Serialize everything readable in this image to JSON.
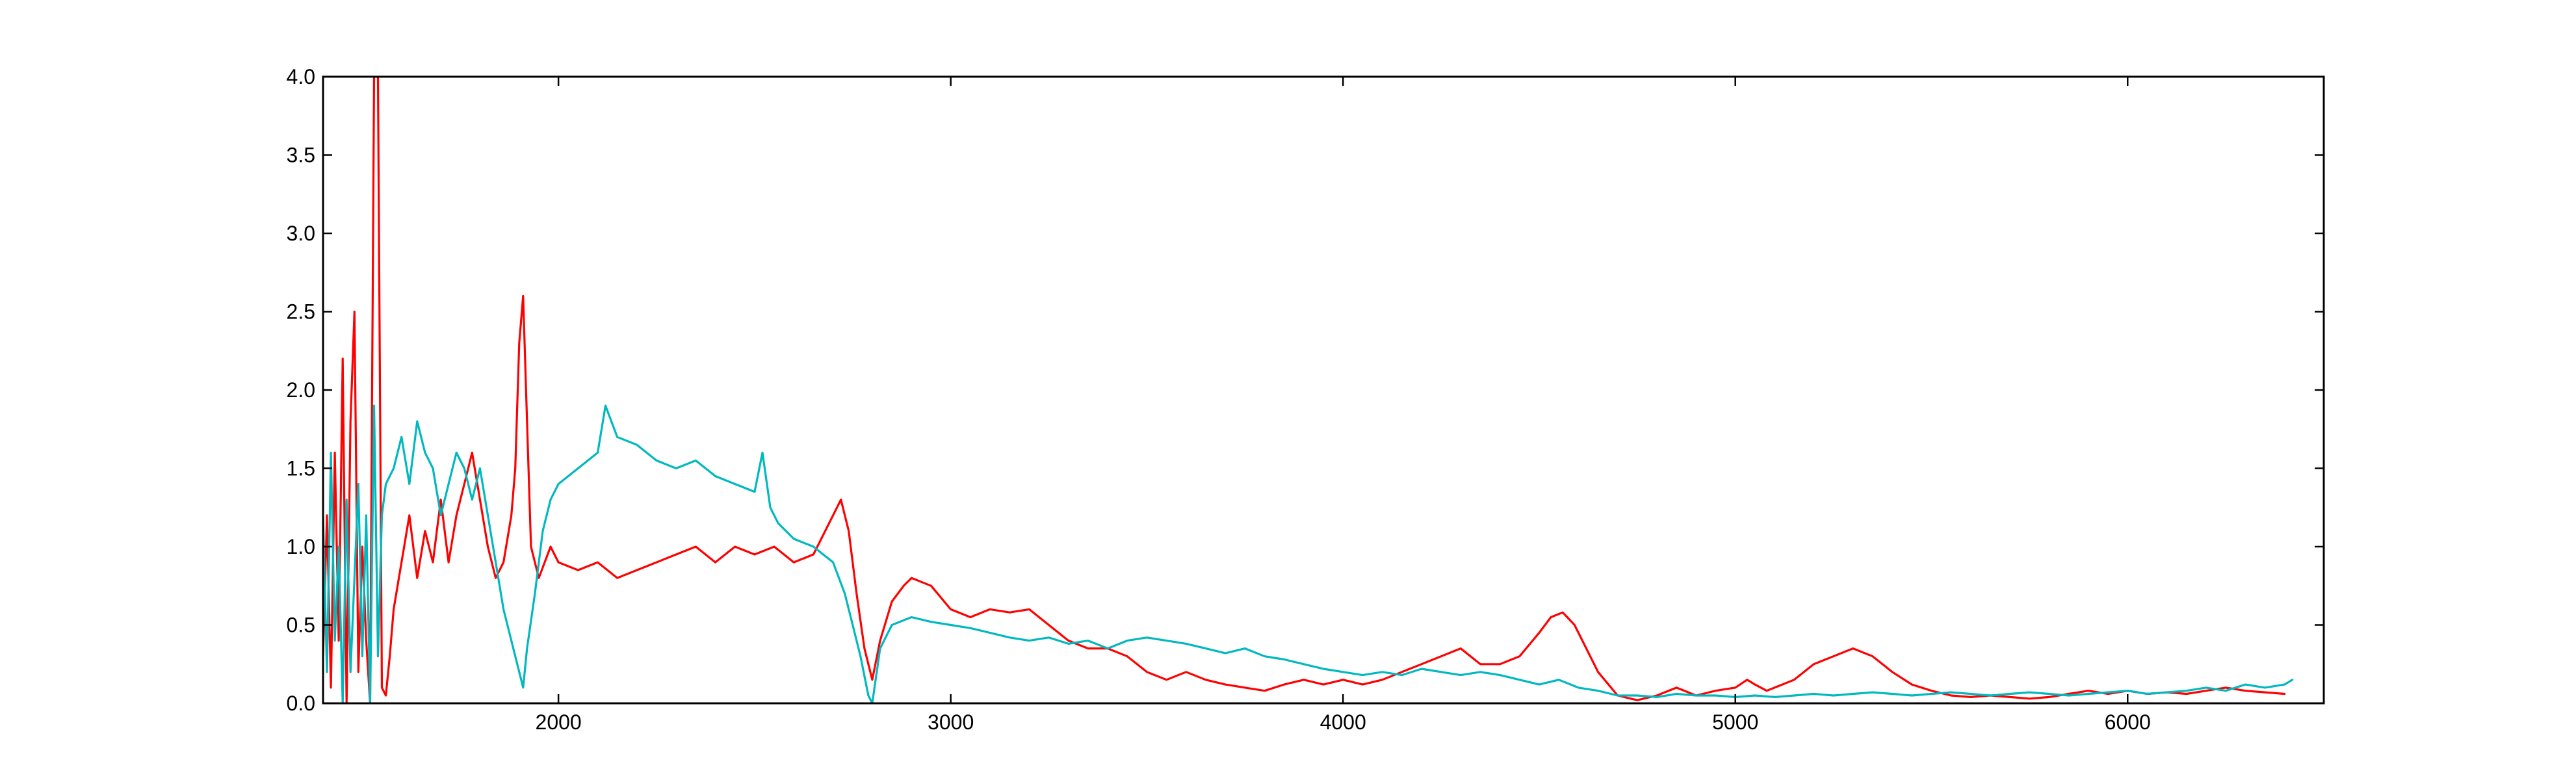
{
  "chart_data": {
    "type": "line",
    "title": "",
    "xlabel": "",
    "ylabel": "",
    "xlim": [
      1400,
      6500
    ],
    "ylim": [
      0,
      4
    ],
    "grid": false,
    "x_ticks": [
      2000,
      3000,
      4000,
      5000,
      6000
    ],
    "y_ticks": [
      0.0,
      0.5,
      1.0,
      1.5,
      2.0,
      2.5,
      3.0,
      3.5,
      4.0
    ],
    "y_tick_labels": [
      "0.0",
      "0.5",
      "1.0",
      "1.5",
      "2.0",
      "2.5",
      "3.0",
      "3.5",
      "4.0"
    ],
    "series": [
      {
        "color": "#ff0000",
        "x": [
          1400,
          1410,
          1420,
          1430,
          1440,
          1450,
          1460,
          1470,
          1480,
          1490,
          1500,
          1510,
          1520,
          1530,
          1540,
          1550,
          1560,
          1570,
          1580,
          1600,
          1620,
          1640,
          1660,
          1680,
          1700,
          1720,
          1740,
          1760,
          1780,
          1800,
          1820,
          1840,
          1860,
          1880,
          1890,
          1900,
          1910,
          1920,
          1930,
          1950,
          1980,
          2000,
          2050,
          2100,
          2150,
          2200,
          2250,
          2300,
          2350,
          2400,
          2450,
          2500,
          2550,
          2600,
          2650,
          2700,
          2720,
          2740,
          2760,
          2780,
          2800,
          2820,
          2850,
          2880,
          2900,
          2950,
          3000,
          3050,
          3100,
          3150,
          3200,
          3250,
          3300,
          3350,
          3400,
          3450,
          3500,
          3550,
          3600,
          3650,
          3700,
          3750,
          3800,
          3850,
          3900,
          3950,
          4000,
          4050,
          4100,
          4150,
          4200,
          4250,
          4300,
          4350,
          4400,
          4450,
          4500,
          4530,
          4560,
          4590,
          4620,
          4650,
          4700,
          4750,
          4800,
          4850,
          4900,
          4950,
          5000,
          5030,
          5050,
          5080,
          5100,
          5150,
          5200,
          5250,
          5300,
          5350,
          5400,
          5450,
          5500,
          5550,
          5600,
          5650,
          5700,
          5750,
          5800,
          5850,
          5900,
          5950,
          6000,
          6050,
          6100,
          6150,
          6200,
          6250,
          6300,
          6350,
          6400
        ],
        "y": [
          0.3,
          1.2,
          0.1,
          1.6,
          0.4,
          2.2,
          0.0,
          1.8,
          2.5,
          0.2,
          1.0,
          0.4,
          0.0,
          4.0,
          4.0,
          0.1,
          0.05,
          0.3,
          0.6,
          0.9,
          1.2,
          0.8,
          1.1,
          0.9,
          1.3,
          0.9,
          1.2,
          1.4,
          1.6,
          1.3,
          1.0,
          0.8,
          0.9,
          1.2,
          1.5,
          2.3,
          2.6,
          1.8,
          1.0,
          0.8,
          1.0,
          0.9,
          0.85,
          0.9,
          0.8,
          0.85,
          0.9,
          0.95,
          1.0,
          0.9,
          1.0,
          0.95,
          1.0,
          0.9,
          0.95,
          1.2,
          1.3,
          1.1,
          0.7,
          0.35,
          0.15,
          0.4,
          0.65,
          0.75,
          0.8,
          0.75,
          0.6,
          0.55,
          0.6,
          0.58,
          0.6,
          0.5,
          0.4,
          0.35,
          0.35,
          0.3,
          0.2,
          0.15,
          0.2,
          0.15,
          0.12,
          0.1,
          0.08,
          0.12,
          0.15,
          0.12,
          0.15,
          0.12,
          0.15,
          0.2,
          0.25,
          0.3,
          0.35,
          0.25,
          0.25,
          0.3,
          0.45,
          0.55,
          0.58,
          0.5,
          0.35,
          0.2,
          0.05,
          0.02,
          0.05,
          0.1,
          0.05,
          0.08,
          0.1,
          0.15,
          0.12,
          0.08,
          0.1,
          0.15,
          0.25,
          0.3,
          0.35,
          0.3,
          0.2,
          0.12,
          0.08,
          0.05,
          0.04,
          0.05,
          0.04,
          0.03,
          0.04,
          0.06,
          0.08,
          0.06,
          0.08,
          0.06,
          0.07,
          0.06,
          0.08,
          0.1,
          0.08,
          0.07,
          0.06
        ]
      },
      {
        "color": "#00b8bf",
        "x": [
          1400,
          1410,
          1420,
          1430,
          1440,
          1450,
          1460,
          1470,
          1480,
          1490,
          1500,
          1510,
          1520,
          1530,
          1540,
          1550,
          1560,
          1580,
          1600,
          1620,
          1640,
          1660,
          1680,
          1700,
          1720,
          1740,
          1760,
          1780,
          1800,
          1820,
          1840,
          1860,
          1880,
          1900,
          1910,
          1920,
          1940,
          1960,
          1980,
          2000,
          2050,
          2100,
          2120,
          2150,
          2200,
          2250,
          2300,
          2350,
          2400,
          2450,
          2500,
          2520,
          2540,
          2560,
          2600,
          2650,
          2700,
          2730,
          2750,
          2770,
          2790,
          2800,
          2820,
          2850,
          2900,
          2950,
          3000,
          3050,
          3100,
          3150,
          3200,
          3250,
          3300,
          3350,
          3400,
          3450,
          3500,
          3550,
          3600,
          3650,
          3700,
          3750,
          3800,
          3850,
          3900,
          3950,
          4000,
          4050,
          4100,
          4150,
          4200,
          4250,
          4300,
          4350,
          4400,
          4450,
          4500,
          4550,
          4600,
          4650,
          4700,
          4750,
          4800,
          4850,
          4900,
          4950,
          5000,
          5050,
          5100,
          5150,
          5200,
          5250,
          5300,
          5350,
          5400,
          5450,
          5500,
          5550,
          5600,
          5650,
          5700,
          5750,
          5800,
          5850,
          5900,
          5950,
          6000,
          6050,
          6100,
          6150,
          6200,
          6250,
          6300,
          6350,
          6400,
          6420
        ],
        "y": [
          1.2,
          0.2,
          1.6,
          0.4,
          1.0,
          0.0,
          1.3,
          0.2,
          0.8,
          1.4,
          0.3,
          1.2,
          0.0,
          1.9,
          0.3,
          1.2,
          1.4,
          1.5,
          1.7,
          1.4,
          1.8,
          1.6,
          1.5,
          1.2,
          1.4,
          1.6,
          1.5,
          1.3,
          1.5,
          1.2,
          0.9,
          0.6,
          0.4,
          0.2,
          0.1,
          0.35,
          0.7,
          1.1,
          1.3,
          1.4,
          1.5,
          1.6,
          1.9,
          1.7,
          1.65,
          1.55,
          1.5,
          1.55,
          1.45,
          1.4,
          1.35,
          1.6,
          1.25,
          1.15,
          1.05,
          1.0,
          0.9,
          0.7,
          0.5,
          0.3,
          0.05,
          0.0,
          0.35,
          0.5,
          0.55,
          0.52,
          0.5,
          0.48,
          0.45,
          0.42,
          0.4,
          0.42,
          0.38,
          0.4,
          0.35,
          0.4,
          0.42,
          0.4,
          0.38,
          0.35,
          0.32,
          0.35,
          0.3,
          0.28,
          0.25,
          0.22,
          0.2,
          0.18,
          0.2,
          0.18,
          0.22,
          0.2,
          0.18,
          0.2,
          0.18,
          0.15,
          0.12,
          0.15,
          0.1,
          0.08,
          0.05,
          0.05,
          0.04,
          0.06,
          0.05,
          0.05,
          0.04,
          0.05,
          0.04,
          0.05,
          0.06,
          0.05,
          0.06,
          0.07,
          0.06,
          0.05,
          0.06,
          0.07,
          0.06,
          0.05,
          0.06,
          0.07,
          0.06,
          0.05,
          0.06,
          0.07,
          0.08,
          0.06,
          0.07,
          0.08,
          0.1,
          0.08,
          0.12,
          0.1,
          0.12,
          0.15
        ]
      }
    ]
  }
}
